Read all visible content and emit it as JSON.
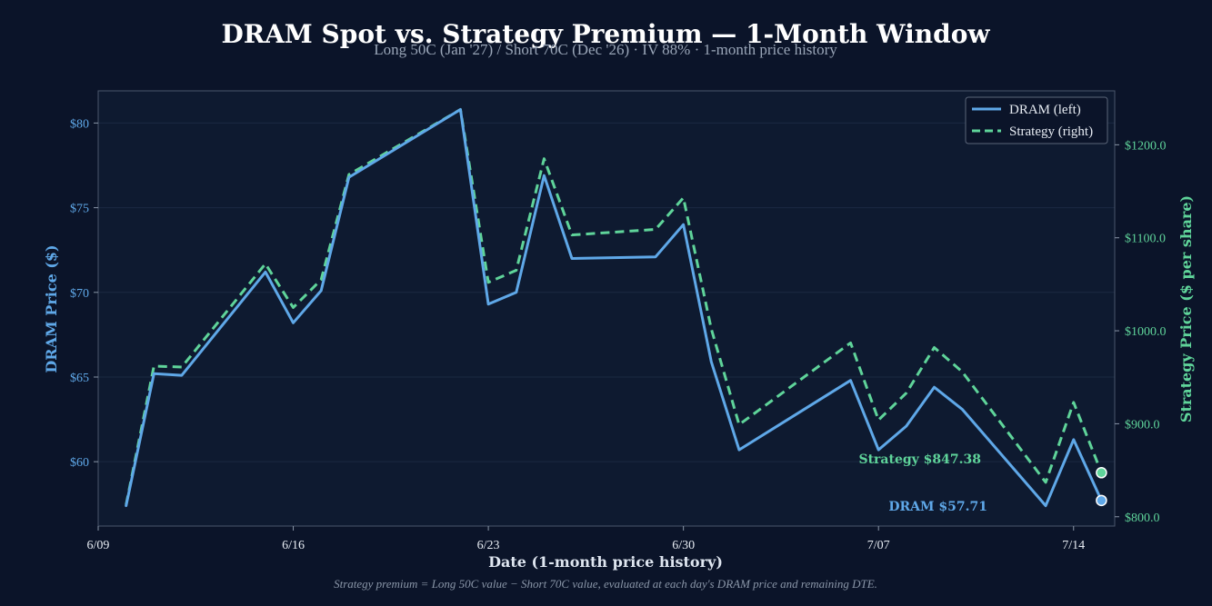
{
  "chart_data": {
    "type": "line",
    "title": "DRAM Spot vs. Strategy Premium — 1-Month Window",
    "subtitle": "Long 50C (Jan '27) / Short 70C (Dec '26) · IV 88% · 1-month price history",
    "xlabel": "Date (1-month price history)",
    "ylabel_left": "DRAM Price ($)",
    "ylabel_right": "Strategy Price ($ per share)",
    "footnote": "Strategy premium = Long 50C value − Short 70C value, evaluated at each day's DRAM price and remaining DTE.",
    "x_ticks": [
      "6/09",
      "6/16",
      "6/23",
      "6/30",
      "7/07",
      "7/14"
    ],
    "y_left_ticks": [
      "$60",
      "$65",
      "$70",
      "$75",
      "$80"
    ],
    "y_right_ticks": [
      "$800.0",
      "$900.0",
      "$1000.0",
      "$1100.0",
      "$1200.0"
    ],
    "ylim_left": [
      56.2,
      81.9
    ],
    "ylim_right": [
      790,
      1258
    ],
    "grid": "horizontal",
    "legend_position": "top-right",
    "series": [
      {
        "name": "DRAM (left)",
        "axis": "left",
        "color": "#5fa8e8",
        "style": "solid",
        "x": [
          "2026-06-10",
          "2026-06-11",
          "2026-06-12",
          "2026-06-15",
          "2026-06-16",
          "2026-06-17",
          "2026-06-18",
          "2026-06-22",
          "2026-06-23",
          "2026-06-24",
          "2026-06-25",
          "2026-06-26",
          "2026-06-29",
          "2026-06-30",
          "2026-07-01",
          "2026-07-02",
          "2026-07-06",
          "2026-07-07",
          "2026-07-08",
          "2026-07-09",
          "2026-07-10",
          "2026-07-13",
          "2026-07-14",
          "2026-07-15"
        ],
        "values": [
          57.4,
          65.2,
          65.1,
          71.2,
          68.2,
          70.1,
          76.8,
          80.8,
          69.3,
          70.0,
          76.9,
          72.0,
          72.1,
          74.0,
          65.9,
          60.7,
          64.8,
          60.7,
          62.1,
          64.4,
          63.1,
          57.4,
          61.3,
          57.71
        ]
      },
      {
        "name": "Strategy (right)",
        "axis": "right",
        "color": "#5fd49a",
        "style": "dashed",
        "x": [
          "2026-06-10",
          "2026-06-11",
          "2026-06-12",
          "2026-06-15",
          "2026-06-16",
          "2026-06-17",
          "2026-06-18",
          "2026-06-22",
          "2026-06-23",
          "2026-06-24",
          "2026-06-25",
          "2026-06-26",
          "2026-06-29",
          "2026-06-30",
          "2026-07-01",
          "2026-07-02",
          "2026-07-06",
          "2026-07-07",
          "2026-07-08",
          "2026-07-09",
          "2026-07-10",
          "2026-07-13",
          "2026-07-14",
          "2026-07-15"
        ],
        "values": [
          813,
          962,
          961,
          1072,
          1025,
          1055,
          1168,
          1238,
          1052,
          1065,
          1185,
          1103,
          1109,
          1143,
          1002,
          899,
          987,
          904,
          933,
          982,
          956,
          837,
          923,
          847.38
        ]
      }
    ],
    "end_labels": {
      "dram": "DRAM $57.71",
      "strategy": "Strategy $847.38"
    }
  }
}
